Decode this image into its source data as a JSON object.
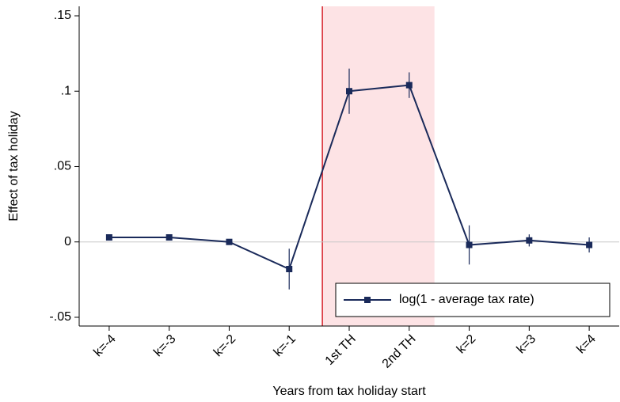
{
  "chart_data": {
    "type": "line",
    "x_label": "Years from tax holiday start",
    "y_label": "Effect of tax holiday",
    "categories": [
      "k=-4",
      "k=-3",
      "k=-2",
      "k=-1",
      "1st TH",
      "2nd TH",
      "k=2",
      "k=3",
      "k=4"
    ],
    "series": [
      {
        "name": "log(1 - average tax rate)",
        "color": "#1a2a5a",
        "values": [
          0.003,
          0.003,
          0.0,
          -0.018,
          0.1,
          0.104,
          -0.002,
          0.001,
          -0.002
        ],
        "errors": [
          0.002,
          0.002,
          0.001,
          0.0135,
          0.015,
          0.0085,
          0.013,
          0.004,
          0.005
        ]
      }
    ],
    "ylim": [
      -0.0558,
      0.1563
    ],
    "yticks": [
      {
        "value": -0.05,
        "label": "-.05"
      },
      0,
      {
        "value": 0.05,
        "label": ".05"
      },
      {
        "value": 0.1,
        "label": ".1"
      },
      {
        "value": 0.15,
        "label": ".15"
      }
    ],
    "legend": "lower right"
  }
}
